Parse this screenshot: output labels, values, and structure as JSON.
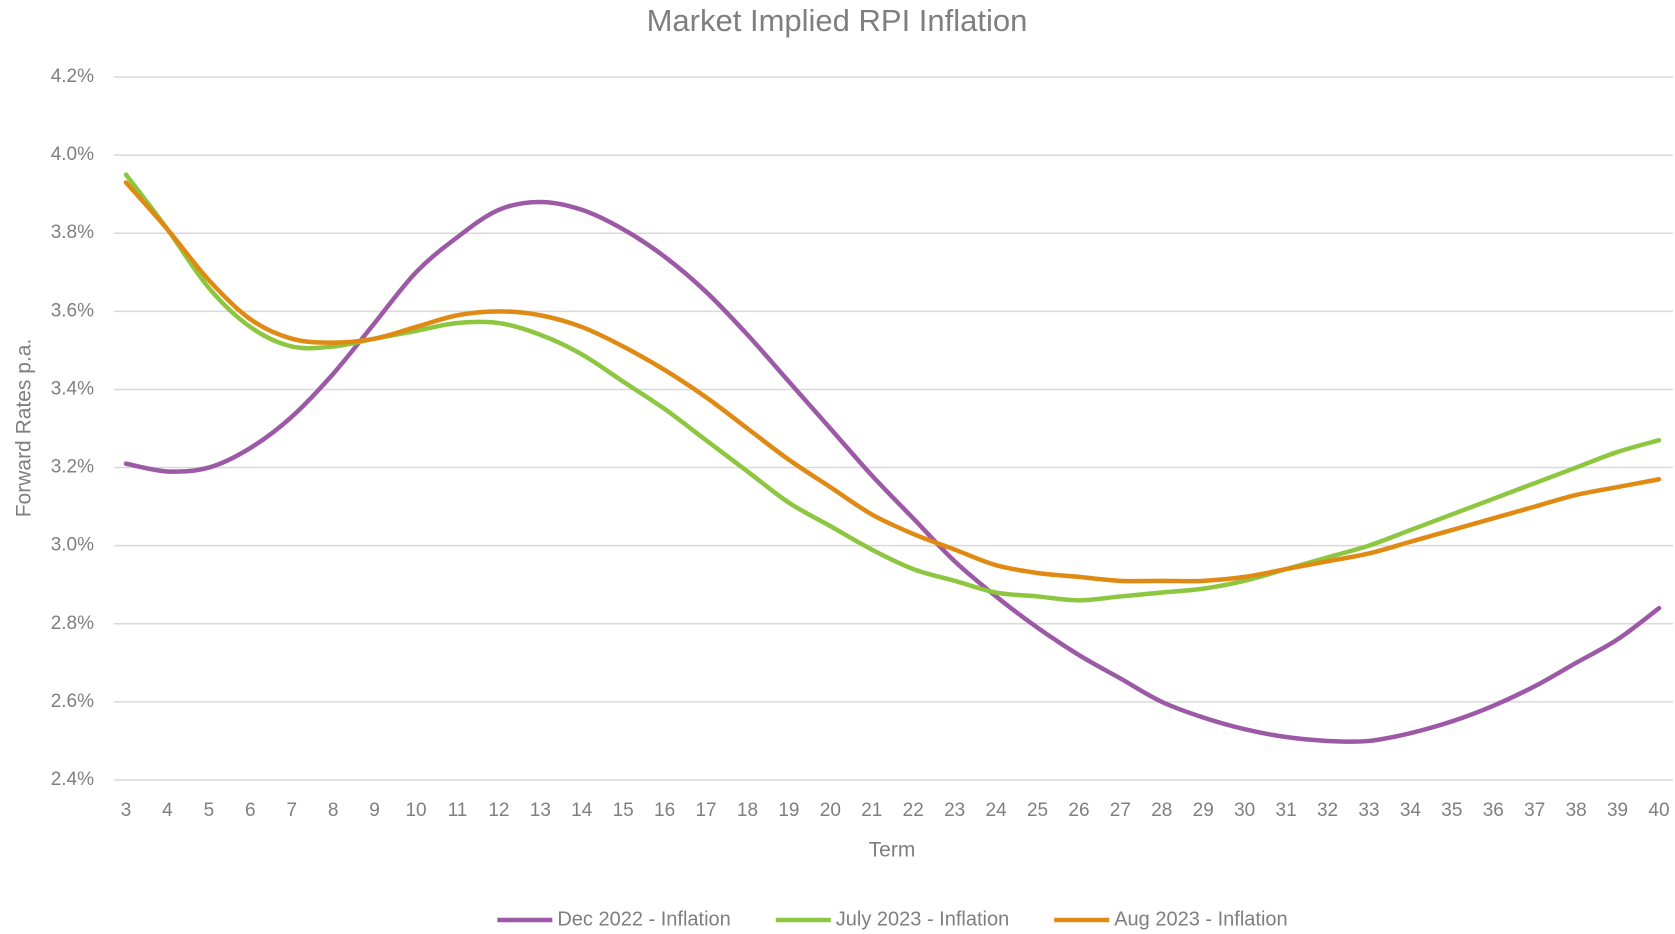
{
  "chart_data": {
    "type": "line",
    "title": "Market Implied RPI Inflation",
    "x_label": "Term",
    "y_label": "Forward Rates p.a.",
    "categories": [
      3,
      4,
      5,
      6,
      7,
      8,
      9,
      10,
      11,
      12,
      13,
      14,
      15,
      16,
      17,
      18,
      19,
      20,
      21,
      22,
      23,
      24,
      25,
      26,
      27,
      28,
      29,
      30,
      31,
      32,
      33,
      34,
      35,
      36,
      37,
      38,
      39,
      40
    ],
    "series": [
      {
        "name": "Dec 2022 - Inflation",
        "color": "#9c59a6",
        "values": [
          3.21,
          3.19,
          3.2,
          3.25,
          3.33,
          3.44,
          3.57,
          3.7,
          3.79,
          3.86,
          3.88,
          3.86,
          3.81,
          3.74,
          3.65,
          3.54,
          3.42,
          3.3,
          3.18,
          3.07,
          2.96,
          2.87,
          2.79,
          2.72,
          2.66,
          2.6,
          2.56,
          2.53,
          2.51,
          2.5,
          2.5,
          2.52,
          2.55,
          2.59,
          2.64,
          2.7,
          2.76,
          2.84
        ]
      },
      {
        "name": "July 2023 - Inflation",
        "color": "#8dc63f",
        "values": [
          3.95,
          3.81,
          3.66,
          3.56,
          3.51,
          3.51,
          3.53,
          3.55,
          3.57,
          3.57,
          3.54,
          3.49,
          3.42,
          3.35,
          3.27,
          3.19,
          3.11,
          3.05,
          2.99,
          2.94,
          2.91,
          2.88,
          2.87,
          2.86,
          2.87,
          2.88,
          2.89,
          2.91,
          2.94,
          2.97,
          3.0,
          3.04,
          3.08,
          3.12,
          3.16,
          3.2,
          3.24,
          3.27
        ]
      },
      {
        "name": "Aug 2023 - Inflation",
        "color": "#e08a13",
        "values": [
          3.93,
          3.81,
          3.68,
          3.58,
          3.53,
          3.52,
          3.53,
          3.56,
          3.59,
          3.6,
          3.59,
          3.56,
          3.51,
          3.45,
          3.38,
          3.3,
          3.22,
          3.15,
          3.08,
          3.03,
          2.99,
          2.95,
          2.93,
          2.92,
          2.91,
          2.91,
          2.91,
          2.92,
          2.94,
          2.96,
          2.98,
          3.01,
          3.04,
          3.07,
          3.1,
          3.13,
          3.15,
          3.17
        ]
      }
    ],
    "ylim": [
      2.4,
      4.2
    ],
    "yticks": [
      {
        "value": 2.4,
        "label": "2.4%"
      },
      {
        "value": 2.6,
        "label": "2.6%"
      },
      {
        "value": 2.8,
        "label": "2.8%"
      },
      {
        "value": 3.0,
        "label": "3.0%"
      },
      {
        "value": 3.2,
        "label": "3.2%"
      },
      {
        "value": 3.4,
        "label": "3.4%"
      },
      {
        "value": 3.6,
        "label": "3.6%"
      },
      {
        "value": 3.8,
        "label": "3.8%"
      },
      {
        "value": 4.0,
        "label": "4.0%"
      },
      {
        "value": 4.2,
        "label": "4.2%"
      }
    ],
    "grid": true,
    "legend": "bottom"
  }
}
